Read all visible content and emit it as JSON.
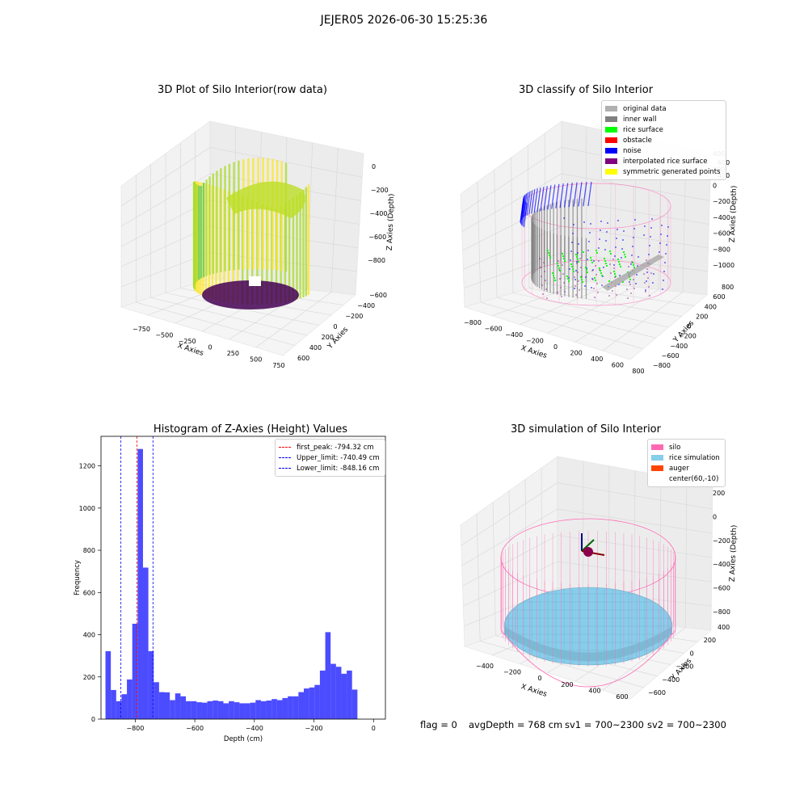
{
  "figure": {
    "suptitle": "JEJER05 2026-06-30 15:25:36"
  },
  "panels": {
    "raw": {
      "title": "3D Plot of Silo Interior(row data)",
      "xlabel": "X Axies",
      "ylabel": "Y Axies",
      "zlabel": "Z Axies (Depth)",
      "xticks": [
        "−750",
        "−500",
        "−250",
        "0",
        "250",
        "500",
        "750"
      ],
      "yticks": [
        "−600",
        "−400",
        "−200",
        "0",
        "200",
        "400",
        "600"
      ],
      "zticks": [
        "0",
        "−200",
        "−400",
        "−600",
        "−800"
      ]
    },
    "classify": {
      "title": "3D classify of Silo Interior",
      "xlabel": "X Axies",
      "ylabel": "Y Axies",
      "zlabel": "Z Axies (Depth)",
      "xticks": [
        "−800",
        "−600",
        "−400",
        "−200",
        "0",
        "200",
        "400",
        "600",
        "800"
      ],
      "yticks": [
        "−800",
        "−600",
        "−400",
        "−200",
        "0",
        "200",
        "400",
        "600",
        "800"
      ],
      "zticks": [
        "400",
        "200",
        "0",
        "−200",
        "−400",
        "−600",
        "−800",
        "−1000"
      ],
      "legend": [
        {
          "label": "original data",
          "color": "#b0b0b0"
        },
        {
          "label": "inner wall",
          "color": "#808080"
        },
        {
          "label": "rice surface",
          "color": "#00ff00"
        },
        {
          "label": "obstacle",
          "color": "#ff0000"
        },
        {
          "label": "noise",
          "color": "#0000ff"
        },
        {
          "label": "interpolated rice surface",
          "color": "#800080"
        },
        {
          "label": "symmetric generated points",
          "color": "#ffff00"
        }
      ],
      "tickfrag1": "600",
      "tickfrag2": "400"
    },
    "simulation": {
      "title": "3D simulation of Silo Interior",
      "xlabel": "X Axies",
      "ylabel": "Y Axies",
      "zlabel": "Z Axies (Depth)",
      "xticks": [
        "−400",
        "−200",
        "0",
        "200",
        "400",
        "600"
      ],
      "yticks": [
        "−600",
        "−400",
        "−200",
        "0",
        "200",
        "400"
      ],
      "zticks": [
        "200",
        "0",
        "−200",
        "−400",
        "−600",
        "−800"
      ],
      "legend": [
        {
          "label": "silo",
          "color": "#ff69b4"
        },
        {
          "label": "rice simulation",
          "color": "#87ceeb"
        },
        {
          "label": "auger",
          "color": "#ff4500"
        },
        {
          "label": "center(60,-10)",
          "color": "#ffffff"
        }
      ]
    }
  },
  "chart_data": {
    "type": "bar",
    "title": "Histogram of Z-Axies (Height) Values",
    "xlabel": "Depth (cm)",
    "ylabel": "Frequency",
    "xlim": [
      -915,
      40
    ],
    "ylim": [
      0,
      1340
    ],
    "xticks": [
      -800,
      -600,
      -400,
      -200,
      0
    ],
    "xtick_labels": [
      "−800",
      "−600",
      "−400",
      "−200",
      "0"
    ],
    "yticks": [
      0,
      200,
      400,
      600,
      800,
      1000,
      1200
    ],
    "bin_start": -900,
    "bin_width": 18,
    "values": [
      322,
      138,
      85,
      118,
      188,
      452,
      1280,
      718,
      322,
      175,
      128,
      127,
      90,
      122,
      108,
      85,
      85,
      80,
      78,
      85,
      88,
      85,
      75,
      85,
      80,
      75,
      75,
      78,
      90,
      85,
      88,
      95,
      90,
      100,
      108,
      108,
      128,
      145,
      150,
      162,
      230,
      412,
      262,
      248,
      215,
      230,
      140
    ],
    "color": "#0000ff",
    "lines": [
      {
        "label": "first_peak: -794.32 cm",
        "x": -794.32,
        "color": "#ff0000"
      },
      {
        "label": "Upper_limit: -740.49 cm",
        "x": -740.49,
        "color": "#0000ff"
      },
      {
        "label": "Lower_limit: -848.16 cm",
        "x": -848.16,
        "color": "#0000ff"
      }
    ],
    "legend_position": "top-right"
  },
  "status": {
    "flag": "flag = 0",
    "avg": "avgDepth = 768 cm",
    "sv1": "sv1 = 700~2300",
    "sv2": "sv2 = 700~2300"
  }
}
